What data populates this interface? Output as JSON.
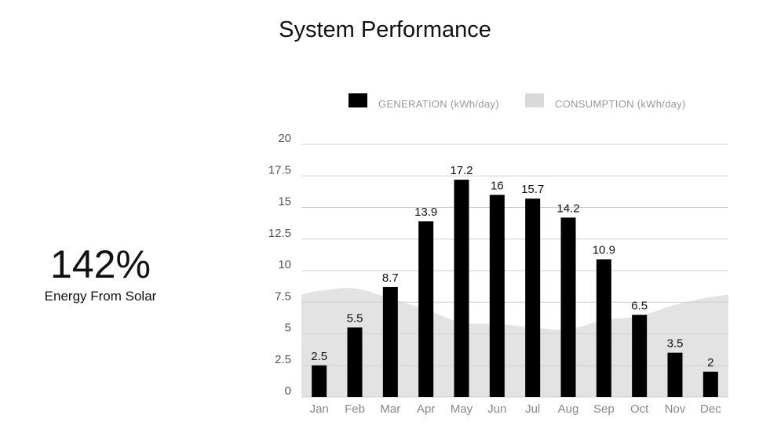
{
  "chart_data": {
    "type": "bar",
    "title": "System Performance",
    "categories": [
      "Jan",
      "Feb",
      "Mar",
      "Apr",
      "May",
      "Jun",
      "Jul",
      "Aug",
      "Sep",
      "Oct",
      "Nov",
      "Dec"
    ],
    "series": [
      {
        "name": "GENERATION (kWh/day)",
        "type": "bar",
        "color": "#000000",
        "values": [
          2.5,
          5.5,
          8.7,
          13.9,
          17.2,
          16,
          15.7,
          14.2,
          10.9,
          6.5,
          3.5,
          2
        ]
      },
      {
        "name": "CONSUMPTION (kWh/day)",
        "type": "area",
        "color": "#e3e3e3",
        "values": [
          8.4,
          8.6,
          7.8,
          6.9,
          5.9,
          5.8,
          5.5,
          5.35,
          6.1,
          6.4,
          7.3,
          7.9
        ]
      }
    ],
    "ylim": [
      0,
      20
    ],
    "yticks": [
      "0",
      "2.5",
      "5",
      "7.5",
      "10",
      "12.5",
      "15",
      "17.5",
      "20"
    ],
    "grid": true,
    "legend_position": "top",
    "data_labels": true
  },
  "kpi": {
    "value": "142%",
    "label": "Energy From Solar"
  }
}
